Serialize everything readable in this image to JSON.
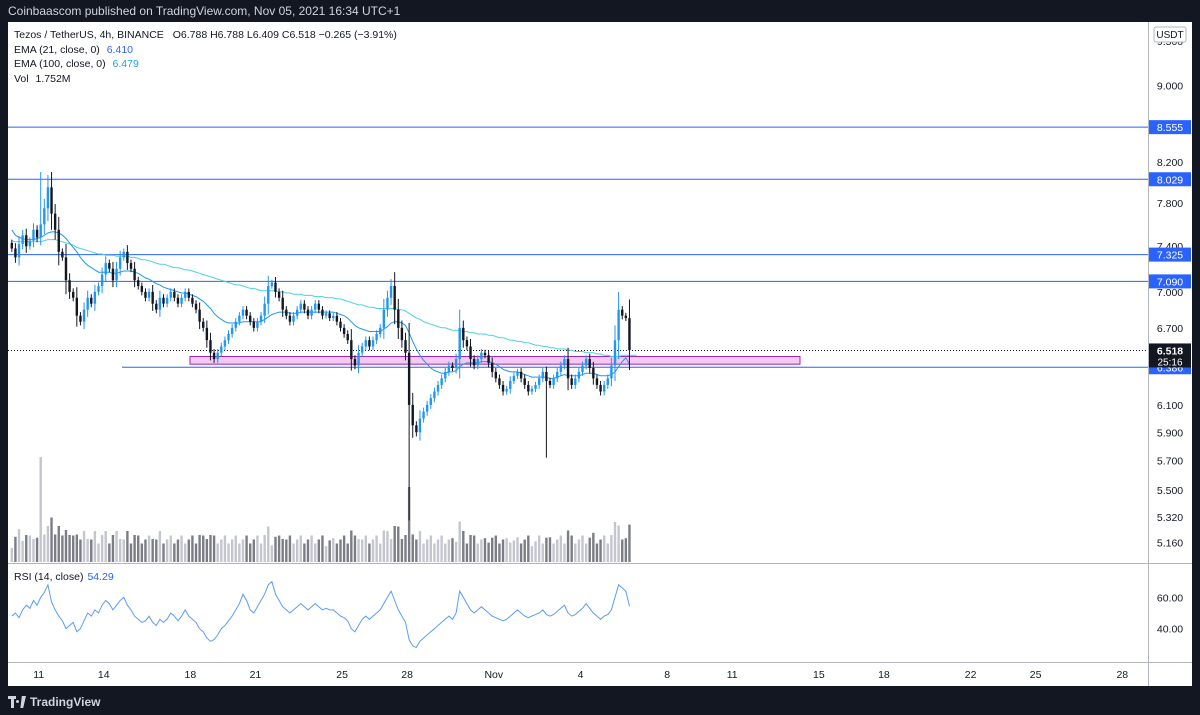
{
  "header": {
    "publisher_line": "Coinbaascom published on TradingView.com, Nov 05, 2021 16:34 UTC+1"
  },
  "footer": {
    "brand": "TradingView"
  },
  "legend": {
    "symbol_line": "Tezos / TetherUS, 4h, BINANCE",
    "ohlc": "O6.788  H6.788  L6.409  C6.518  −0.265 (−3.91%)",
    "ema21_label": "EMA (21, close, 0)",
    "ema21_value": "6.410",
    "ema100_label": "EMA (100, close, 0)",
    "ema100_value": "6.479",
    "vol_label": "Vol",
    "vol_value": "1.752M",
    "rsi_label": "RSI (14, close)",
    "rsi_value": "54.29"
  },
  "colors": {
    "up_candle": "#2196f3",
    "down_candle": "#131722",
    "ema21": "#2196f3",
    "ema100": "#4dd0e1",
    "hline": "#2962ff",
    "zone_fill": "#f3c8f3",
    "zone_stroke": "#9c27b0",
    "rsi": "#5b9cf6"
  },
  "chart_data": {
    "type": "candlestick",
    "currency": "USDT",
    "ylim": [
      5.05,
      9.7
    ],
    "y_ticks": [
      "9.500",
      "9.000",
      "8.200",
      "7.800",
      "7.400",
      "7.000",
      "6.700",
      "6.100",
      "5.900",
      "5.700",
      "5.500",
      "5.320",
      "5.160"
    ],
    "x_ticks": [
      "11",
      "14",
      "18",
      "21",
      "25",
      "28",
      "Nov",
      "4",
      "8",
      "11",
      "15",
      "18",
      "22",
      "25",
      "28"
    ],
    "horizontal_levels": [
      {
        "value": 8.555,
        "label": "8.555"
      },
      {
        "value": 8.029,
        "label": "8.029"
      },
      {
        "value": 7.325,
        "label": "7.325"
      },
      {
        "value": 7.09,
        "label": "7.090"
      },
      {
        "value": 6.386,
        "label": "6.386"
      }
    ],
    "last_price": {
      "value": 6.518,
      "label": "6.518",
      "countdown": "25:16"
    },
    "support_zone": {
      "low": 6.41,
      "high": 6.47
    },
    "candles_close": [
      7.38,
      7.3,
      7.42,
      7.5,
      7.4,
      7.45,
      7.55,
      7.48,
      7.6,
      7.75,
      7.95,
      7.7,
      7.55,
      7.35,
      7.3,
      7.1,
      7.0,
      6.95,
      6.8,
      6.75,
      6.85,
      6.95,
      6.9,
      7.0,
      7.05,
      7.15,
      7.25,
      7.2,
      7.1,
      7.2,
      7.3,
      7.35,
      7.25,
      7.2,
      7.1,
      7.05,
      7.0,
      6.95,
      7.0,
      6.9,
      6.85,
      6.95,
      6.9,
      6.95,
      7.0,
      6.95,
      6.9,
      6.95,
      7.0,
      6.95,
      6.9,
      6.85,
      6.75,
      6.7,
      6.6,
      6.5,
      6.45,
      6.5,
      6.55,
      6.6,
      6.65,
      6.7,
      6.75,
      6.8,
      6.85,
      6.8,
      6.75,
      6.7,
      6.75,
      6.8,
      6.9,
      7.05,
      7.08,
      7.0,
      6.95,
      6.85,
      6.8,
      6.75,
      6.8,
      6.85,
      6.9,
      6.85,
      6.8,
      6.85,
      6.9,
      6.85,
      6.8,
      6.82,
      6.78,
      6.8,
      6.75,
      6.7,
      6.65,
      6.6,
      6.45,
      6.4,
      6.5,
      6.55,
      6.6,
      6.55,
      6.6,
      6.65,
      6.7,
      6.85,
      6.95,
      7.05,
      6.85,
      6.7,
      6.6,
      6.5,
      6.1,
      5.95,
      5.9,
      6.0,
      6.05,
      6.1,
      6.15,
      6.2,
      6.25,
      6.3,
      6.35,
      6.4,
      6.38,
      6.45,
      6.7,
      6.6,
      6.55,
      6.45,
      6.4,
      6.45,
      6.5,
      6.48,
      6.42,
      6.35,
      6.3,
      6.25,
      6.2,
      6.22,
      6.28,
      6.32,
      6.35,
      6.3,
      6.25,
      6.2,
      6.22,
      6.25,
      6.3,
      6.35,
      6.28,
      6.25,
      6.3,
      6.35,
      6.4,
      6.45,
      6.3,
      6.25,
      6.3,
      6.35,
      6.4,
      6.45,
      6.38,
      6.3,
      6.25,
      6.2,
      6.25,
      6.3,
      6.4,
      6.6,
      6.85,
      6.8,
      6.78,
      6.52
    ],
    "ema21": [
      7.55,
      7.5,
      7.48,
      7.47,
      7.46,
      7.46,
      7.46,
      7.47,
      7.48,
      7.5,
      7.52,
      7.53,
      7.53,
      7.52,
      7.5,
      7.47,
      7.43,
      7.39,
      7.35,
      7.3,
      7.26,
      7.23,
      7.21,
      7.19,
      7.17,
      7.17,
      7.17,
      7.17,
      7.16,
      7.16,
      7.17,
      7.18,
      7.18,
      7.18,
      7.17,
      7.16,
      7.14,
      7.12,
      7.11,
      7.09,
      7.07,
      7.06,
      7.04,
      7.03,
      7.02,
      7.01,
      7.0,
      6.99,
      6.99,
      6.98,
      6.97,
      6.96,
      6.94,
      6.92,
      6.89,
      6.86,
      6.82,
      6.79,
      6.77,
      6.75,
      6.74,
      6.74,
      6.74,
      6.74,
      6.75,
      6.75,
      6.75,
      6.75,
      6.75,
      6.75,
      6.77,
      6.79,
      6.81,
      6.82,
      6.83,
      6.83,
      6.83,
      6.82,
      6.82,
      6.82,
      6.83,
      6.83,
      6.83,
      6.83,
      6.83,
      6.83,
      6.83,
      6.83,
      6.83,
      6.83,
      6.82,
      6.81,
      6.8,
      6.78,
      6.75,
      6.72,
      6.7,
      6.69,
      6.68,
      6.67,
      6.67,
      6.67,
      6.67,
      6.69,
      6.71,
      6.74,
      6.75,
      6.75,
      6.74,
      6.72,
      6.66,
      6.59,
      6.53,
      6.48,
      6.44,
      6.41,
      6.38,
      6.36,
      6.35,
      6.34,
      6.34,
      6.35,
      6.35,
      6.36,
      6.39,
      6.41,
      6.42,
      6.42,
      6.42,
      6.42,
      6.43,
      6.43,
      6.43,
      6.42,
      6.41,
      6.39,
      6.37,
      6.36,
      6.35,
      6.35,
      6.35,
      6.34,
      6.33,
      6.32,
      6.31,
      6.31,
      6.31,
      6.31,
      6.31,
      6.3,
      6.3,
      6.31,
      6.32,
      6.33,
      6.32,
      6.32,
      6.32,
      6.32,
      6.33,
      6.34,
      6.34,
      6.34,
      6.33,
      6.32,
      6.32,
      6.32,
      6.33,
      6.35,
      6.39,
      6.43,
      6.46,
      6.41
    ],
    "ema100": [
      7.45,
      7.44,
      7.44,
      7.44,
      7.44,
      7.44,
      7.44,
      7.44,
      7.44,
      7.45,
      7.46,
      7.46,
      7.46,
      7.45,
      7.44,
      7.43,
      7.42,
      7.41,
      7.39,
      7.38,
      7.37,
      7.36,
      7.35,
      7.34,
      7.33,
      7.33,
      7.32,
      7.32,
      7.32,
      7.31,
      7.31,
      7.31,
      7.31,
      7.3,
      7.3,
      7.29,
      7.28,
      7.28,
      7.27,
      7.26,
      7.25,
      7.24,
      7.24,
      7.23,
      7.22,
      7.21,
      7.21,
      7.2,
      7.19,
      7.19,
      7.18,
      7.17,
      7.16,
      7.15,
      7.14,
      7.13,
      7.12,
      7.11,
      7.1,
      7.09,
      7.08,
      7.07,
      7.06,
      7.06,
      7.05,
      7.04,
      7.03,
      7.03,
      7.02,
      7.01,
      7.01,
      7.01,
      7.01,
      7.01,
      7.0,
      7.0,
      6.99,
      6.99,
      6.98,
      6.98,
      6.98,
      6.97,
      6.97,
      6.97,
      6.96,
      6.96,
      6.96,
      6.95,
      6.95,
      6.95,
      6.94,
      6.94,
      6.93,
      6.92,
      6.91,
      6.9,
      6.89,
      6.89,
      6.88,
      6.87,
      6.87,
      6.86,
      6.86,
      6.86,
      6.86,
      6.86,
      6.86,
      6.85,
      6.85,
      6.84,
      6.82,
      6.8,
      6.78,
      6.77,
      6.75,
      6.74,
      6.73,
      6.72,
      6.71,
      6.7,
      6.7,
      6.69,
      6.68,
      6.68,
      6.68,
      6.67,
      6.67,
      6.66,
      6.66,
      6.65,
      6.65,
      6.65,
      6.64,
      6.64,
      6.63,
      6.62,
      6.62,
      6.61,
      6.6,
      6.6,
      6.59,
      6.59,
      6.58,
      6.58,
      6.57,
      6.56,
      6.56,
      6.55,
      6.55,
      6.54,
      6.54,
      6.53,
      6.53,
      6.53,
      6.52,
      6.52,
      6.51,
      6.51,
      6.51,
      6.5,
      6.5,
      6.5,
      6.49,
      6.49,
      6.48,
      6.48,
      6.47,
      6.47,
      6.47,
      6.48,
      6.48,
      6.48,
      6.48,
      6.48
    ],
    "rsi": [
      48,
      50,
      47,
      52,
      55,
      53,
      58,
      55,
      60,
      63,
      68,
      57,
      52,
      48,
      45,
      40,
      42,
      44,
      38,
      40,
      45,
      50,
      48,
      52,
      50,
      55,
      58,
      56,
      52,
      55,
      58,
      60,
      55,
      52,
      48,
      46,
      44,
      45,
      48,
      44,
      42,
      46,
      44,
      46,
      50,
      48,
      45,
      48,
      52,
      48,
      46,
      44,
      40,
      38,
      34,
      32,
      33,
      36,
      40,
      42,
      45,
      48,
      52,
      56,
      62,
      58,
      52,
      50,
      54,
      58,
      62,
      68,
      70,
      62,
      58,
      54,
      52,
      50,
      52,
      54,
      56,
      54,
      52,
      54,
      56,
      54,
      52,
      53,
      52,
      52,
      50,
      48,
      47,
      45,
      40,
      38,
      42,
      46,
      48,
      46,
      48,
      50,
      52,
      56,
      60,
      64,
      58,
      52,
      48,
      44,
      33,
      29,
      28,
      32,
      34,
      36,
      38,
      40,
      42,
      44,
      46,
      48,
      46,
      50,
      64,
      60,
      56,
      52,
      50,
      52,
      54,
      52,
      50,
      48,
      47,
      46,
      45,
      46,
      48,
      50,
      52,
      50,
      48,
      47,
      48,
      49,
      50,
      52,
      49,
      48,
      49,
      51,
      53,
      55,
      50,
      48,
      49,
      51,
      53,
      56,
      53,
      50,
      48,
      46,
      48,
      49,
      52,
      60,
      68,
      66,
      64,
      54.29
    ],
    "rsi_ticks": [
      "60.00",
      "40.00"
    ],
    "rsi_ylim": [
      20,
      80
    ]
  }
}
